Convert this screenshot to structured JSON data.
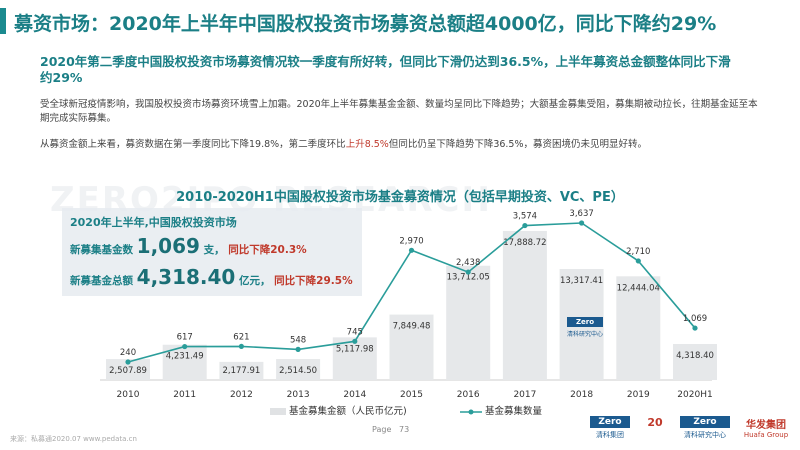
{
  "header": {
    "title": "募资市场：2020年上半年中国股权投资市场募资总额超4000亿，同比下降约29%",
    "subtitle": "2020年第二季度中国股权投资市场募资情况较一季度有所好转，但同比下滑仍达到36.5%，上半年募资总金额整体同比下滑约29%"
  },
  "body": {
    "para1": "受全球新冠疫情影响，我国股权投资市场募资环境雪上加霜。2020年上半年募集基金金额、数量均呈同比下降趋势；大额基金募集受阻，募集期被动拉长，往期基金延至本期完成实际募集。",
    "para2_pre": "从募资金额上来看，募资数据在第一季度同比下降19.8%，第二季度环比",
    "para2_hl": "上升8.5%",
    "para2_post": "但同比仍呈下降趋势下降36.5%，募资困境仍未见明显好转。"
  },
  "watermark": "ZERO2IPO RESEARCH",
  "stats": {
    "heading": "2020年上半年,中国股权投资市场",
    "count_label": "新募集基金数",
    "count_value": "1,069",
    "count_unit": "支，",
    "count_change": "同比下降20.3%",
    "amount_label": "新募基金总额",
    "amount_value": "4,318.40",
    "amount_unit": "亿元，",
    "amount_change": "同比下降29.5%"
  },
  "chart_data": {
    "type": "bar",
    "title": "2010-2020H1中国股权投资市场基金募资情况（包括早期投资、VC、PE）",
    "categories": [
      "2010",
      "2011",
      "2012",
      "2013",
      "2014",
      "2015",
      "2016",
      "2017",
      "2018",
      "2019",
      "2020H1"
    ],
    "series": [
      {
        "name": "基金募集金额（人民币亿元)",
        "type": "bar",
        "values": [
          2507.89,
          4231.49,
          2177.91,
          2514.5,
          5117.98,
          7849.48,
          13712.05,
          17888.72,
          13317.41,
          12444.04,
          4318.4
        ],
        "labels": [
          "2,507.89",
          "4,231.49",
          "2,177.91",
          "2,514.50",
          "5,117.98",
          "7,849.48",
          "13,712.05",
          "17,888.72",
          "13,317.41",
          "12,444.04",
          "4,318.40"
        ]
      },
      {
        "name": "基金募集数量",
        "type": "line",
        "values": [
          240,
          617,
          621,
          548,
          745,
          2970,
          2438,
          3574,
          3637,
          2710,
          1069
        ],
        "labels": [
          "240",
          "617",
          "621",
          "548",
          "745",
          "2,970",
          "2,438",
          "3,574",
          "3,637",
          "2,710",
          "1,069"
        ]
      }
    ],
    "colors": {
      "bar": "#e6e8ea",
      "line": "#2a9d9a",
      "text": "#333333"
    }
  },
  "footer": {
    "note": "来源：私募通2020.07 www.pedata.cn",
    "page_label": "Page",
    "page_number": "73"
  },
  "logos": {
    "zero2ipo": "Zero",
    "zero2ipo_tag": "清科",
    "zero2ipo_group": "清科集团",
    "zero2ipo_group_en": "Zero2IPO Group",
    "research": "清科研究中心",
    "research_en": "Zero2IPO Research",
    "huafa": "华发集团",
    "huafa_en": "Huafa Group",
    "mini_name": "清科研究中心"
  }
}
